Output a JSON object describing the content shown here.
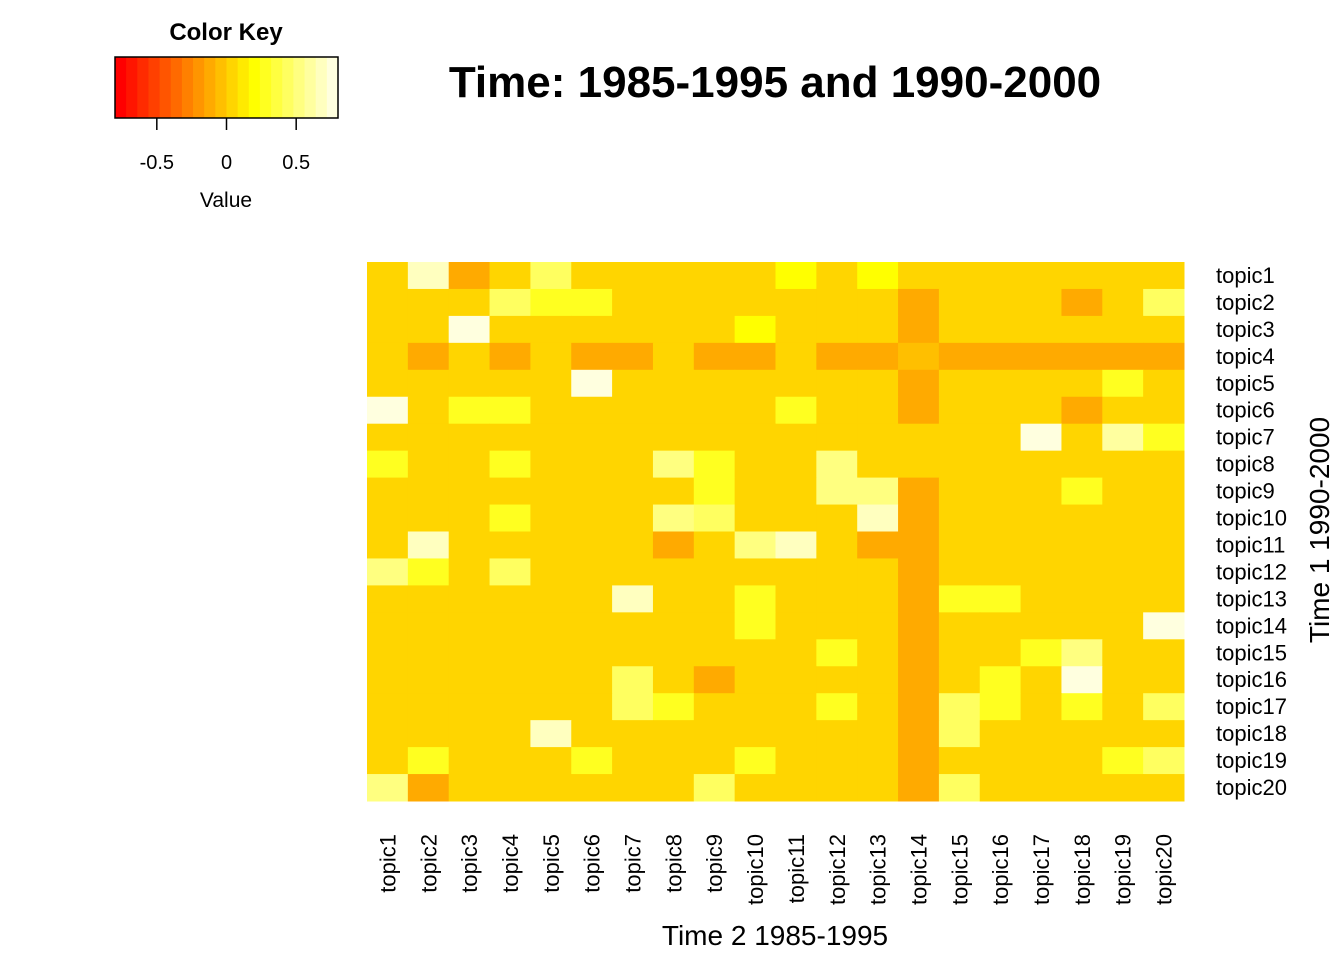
{
  "chart_data": {
    "type": "heatmap",
    "title": "Time: 1985-1995 and 1990-2000",
    "xlabel": "Time 2 1985-1995",
    "ylabel": "Time 1 1990-2000",
    "columns": [
      "topic1",
      "topic2",
      "topic3",
      "topic4",
      "topic5",
      "topic6",
      "topic7",
      "topic8",
      "topic9",
      "topic10",
      "topic11",
      "topic12",
      "topic13",
      "topic14",
      "topic15",
      "topic16",
      "topic17",
      "topic18",
      "topic19",
      "topic20"
    ],
    "rows": [
      "topic1",
      "topic2",
      "topic3",
      "topic4",
      "topic5",
      "topic6",
      "topic7",
      "topic8",
      "topic9",
      "topic10",
      "topic11",
      "topic12",
      "topic13",
      "topic14",
      "topic15",
      "topic16",
      "topic17",
      "topic18",
      "topic19",
      "topic20"
    ],
    "values": [
      [
        0.05,
        0.7,
        -0.1,
        0.05,
        0.4,
        0.05,
        0.05,
        0.05,
        0.05,
        0.05,
        0.2,
        0.05,
        0.2,
        0.05,
        0.05,
        0.05,
        0.05,
        0.05,
        0.05,
        0.05
      ],
      [
        0.05,
        0.05,
        0.05,
        0.4,
        0.3,
        0.3,
        0.05,
        0.05,
        0.05,
        0.05,
        0.05,
        0.05,
        0.05,
        -0.15,
        0.05,
        0.05,
        0.05,
        -0.1,
        0.05,
        0.4
      ],
      [
        0.05,
        0.05,
        0.95,
        0.05,
        0.05,
        0.05,
        0.05,
        0.05,
        0.05,
        0.2,
        0.05,
        0.05,
        0.05,
        -0.15,
        0.05,
        0.05,
        0.05,
        0.05,
        0.05,
        0.05
      ],
      [
        0.05,
        -0.1,
        0.05,
        -0.1,
        0.05,
        -0.1,
        -0.1,
        0.05,
        -0.1,
        -0.1,
        0.05,
        -0.1,
        -0.1,
        -0.05,
        -0.1,
        -0.1,
        -0.1,
        -0.1,
        -0.1,
        -0.1
      ],
      [
        0.05,
        0.05,
        0.05,
        0.05,
        0.05,
        0.95,
        0.05,
        0.05,
        0.05,
        0.05,
        0.05,
        0.05,
        0.05,
        -0.15,
        0.05,
        0.05,
        0.05,
        0.05,
        0.25,
        0.05
      ],
      [
        0.8,
        0.05,
        0.25,
        0.25,
        0.05,
        0.05,
        0.05,
        0.05,
        0.05,
        0.05,
        0.25,
        0.05,
        0.05,
        -0.15,
        0.05,
        0.05,
        0.05,
        -0.1,
        0.05,
        0.05
      ],
      [
        0.05,
        0.05,
        0.05,
        0.05,
        0.05,
        0.05,
        0.05,
        0.05,
        0.05,
        0.05,
        0.05,
        0.05,
        0.05,
        0.05,
        0.05,
        0.05,
        0.95,
        0.05,
        0.6,
        0.25
      ],
      [
        0.25,
        0.05,
        0.05,
        0.25,
        0.05,
        0.05,
        0.05,
        0.55,
        0.25,
        0.05,
        0.05,
        0.55,
        0.05,
        0.05,
        0.05,
        0.05,
        0.05,
        0.05,
        0.05,
        0.05
      ],
      [
        0.05,
        0.05,
        0.05,
        0.05,
        0.05,
        0.05,
        0.05,
        0.05,
        0.25,
        0.05,
        0.05,
        0.55,
        0.55,
        -0.15,
        0.05,
        0.05,
        0.05,
        0.25,
        0.05,
        0.05
      ],
      [
        0.05,
        0.05,
        0.05,
        0.25,
        0.05,
        0.05,
        0.05,
        0.55,
        0.4,
        0.05,
        0.05,
        0.05,
        0.7,
        -0.15,
        0.05,
        0.05,
        0.05,
        0.05,
        0.05,
        0.05
      ],
      [
        0.05,
        0.7,
        0.05,
        0.05,
        0.05,
        0.05,
        0.05,
        -0.1,
        0.05,
        0.55,
        0.7,
        0.05,
        -0.1,
        -0.15,
        0.05,
        0.05,
        0.05,
        0.05,
        0.05,
        0.05
      ],
      [
        0.55,
        0.25,
        0.05,
        0.4,
        0.05,
        0.05,
        0.05,
        0.05,
        0.05,
        0.05,
        0.05,
        0.05,
        0.05,
        -0.15,
        0.05,
        0.05,
        0.05,
        0.05,
        0.05,
        0.05
      ],
      [
        0.05,
        0.05,
        0.05,
        0.05,
        0.05,
        0.05,
        0.7,
        0.05,
        0.05,
        0.25,
        0.05,
        0.05,
        0.05,
        -0.15,
        0.25,
        0.25,
        0.05,
        0.05,
        0.05,
        0.05
      ],
      [
        0.05,
        0.05,
        0.05,
        0.05,
        0.05,
        0.05,
        0.05,
        0.05,
        0.05,
        0.25,
        0.05,
        0.05,
        0.05,
        -0.15,
        0.05,
        0.05,
        0.05,
        0.05,
        0.05,
        0.8
      ],
      [
        0.05,
        0.05,
        0.05,
        0.05,
        0.05,
        0.05,
        0.05,
        0.05,
        0.05,
        0.05,
        0.05,
        0.25,
        0.05,
        -0.15,
        0.05,
        0.05,
        0.25,
        0.55,
        0.05,
        0.05
      ],
      [
        0.05,
        0.05,
        0.05,
        0.05,
        0.05,
        0.05,
        0.4,
        0.05,
        -0.1,
        0.05,
        0.05,
        0.05,
        0.05,
        -0.15,
        0.05,
        0.25,
        0.05,
        0.85,
        0.05,
        0.05
      ],
      [
        0.05,
        0.05,
        0.05,
        0.05,
        0.05,
        0.05,
        0.4,
        0.25,
        0.05,
        0.05,
        0.05,
        0.25,
        0.05,
        -0.15,
        0.4,
        0.25,
        0.05,
        0.25,
        0.05,
        0.4
      ],
      [
        0.05,
        0.05,
        0.05,
        0.05,
        0.7,
        0.05,
        0.05,
        0.05,
        0.05,
        0.05,
        0.05,
        0.05,
        0.05,
        -0.15,
        0.4,
        0.05,
        0.05,
        0.05,
        0.05,
        0.05
      ],
      [
        0.05,
        0.25,
        0.05,
        0.05,
        0.05,
        0.25,
        0.05,
        0.05,
        0.05,
        0.25,
        0.05,
        0.05,
        0.05,
        -0.15,
        0.05,
        0.05,
        0.05,
        0.05,
        0.25,
        0.4
      ],
      [
        0.55,
        -0.1,
        0.05,
        0.05,
        0.05,
        0.05,
        0.05,
        0.05,
        0.4,
        0.05,
        0.05,
        0.05,
        0.05,
        -0.15,
        0.4,
        0.05,
        0.05,
        0.05,
        0.05,
        0.05
      ]
    ],
    "color_key": {
      "title": "Color Key",
      "label": "Value",
      "range": [
        -0.8,
        0.8
      ],
      "ticks": [
        {
          "value": -0.5,
          "label": "-0.5"
        },
        {
          "value": 0,
          "label": "0"
        },
        {
          "value": 0.5,
          "label": "0.5"
        }
      ],
      "colors": [
        "#FF0000",
        "#FF1500",
        "#FF2B00",
        "#FF4000",
        "#FF5500",
        "#FF6A00",
        "#FF8000",
        "#FF9500",
        "#FFAA00",
        "#FFBF00",
        "#FFD500",
        "#FFEA00",
        "#FFFF00",
        "#FFFF20",
        "#FFFF40",
        "#FFFF60",
        "#FFFF80",
        "#FFFF9F",
        "#FFFFBF",
        "#FFFFDF"
      ]
    }
  }
}
